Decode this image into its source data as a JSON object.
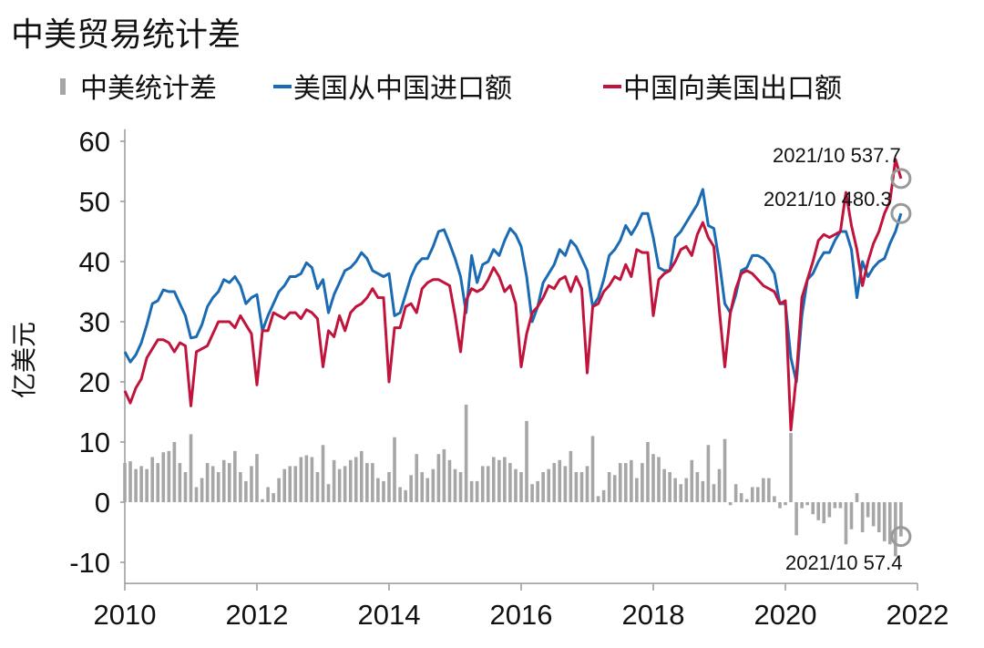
{
  "chart_data": {
    "type": "line",
    "title": "中美贸易统计差",
    "ylabel": "亿美元",
    "xlim": [
      2010,
      2022
    ],
    "xticks": [
      2010,
      2012,
      2014,
      2016,
      2018,
      2020,
      2022
    ],
    "ylim": [
      -13.5,
      62
    ],
    "yticks": [
      -10,
      0,
      10,
      20,
      30,
      40,
      50,
      60
    ],
    "legend": "top",
    "annotations": [
      "2021/10 537.7",
      "2021/10 480.3",
      "2021/10 57.4"
    ],
    "x": [
      2010,
      2010.083,
      2010.167,
      2010.25,
      2010.333,
      2010.417,
      2010.5,
      2010.583,
      2010.667,
      2010.75,
      2010.833,
      2010.917,
      2011,
      2011.083,
      2011.167,
      2011.25,
      2011.333,
      2011.417,
      2011.5,
      2011.583,
      2011.667,
      2011.75,
      2011.833,
      2011.917,
      2012,
      2012.083,
      2012.167,
      2012.25,
      2012.333,
      2012.417,
      2012.5,
      2012.583,
      2012.667,
      2012.75,
      2012.833,
      2012.917,
      2013,
      2013.083,
      2013.167,
      2013.25,
      2013.333,
      2013.417,
      2013.5,
      2013.583,
      2013.667,
      2013.75,
      2013.833,
      2013.917,
      2014,
      2014.083,
      2014.167,
      2014.25,
      2014.333,
      2014.417,
      2014.5,
      2014.583,
      2014.667,
      2014.75,
      2014.833,
      2014.917,
      2015,
      2015.083,
      2015.167,
      2015.25,
      2015.333,
      2015.417,
      2015.5,
      2015.583,
      2015.667,
      2015.75,
      2015.833,
      2015.917,
      2016,
      2016.083,
      2016.167,
      2016.25,
      2016.333,
      2016.417,
      2016.5,
      2016.583,
      2016.667,
      2016.75,
      2016.833,
      2016.917,
      2017,
      2017.083,
      2017.167,
      2017.25,
      2017.333,
      2017.417,
      2017.5,
      2017.583,
      2017.667,
      2017.75,
      2017.833,
      2017.917,
      2018,
      2018.083,
      2018.167,
      2018.25,
      2018.333,
      2018.417,
      2018.5,
      2018.583,
      2018.667,
      2018.75,
      2018.833,
      2018.917,
      2019,
      2019.083,
      2019.167,
      2019.25,
      2019.333,
      2019.417,
      2019.5,
      2019.583,
      2019.667,
      2019.75,
      2019.833,
      2019.917,
      2020,
      2020.083,
      2020.167,
      2020.25,
      2020.333,
      2020.417,
      2020.5,
      2020.583,
      2020.667,
      2020.75,
      2020.833,
      2020.917,
      2021,
      2021.083,
      2021.167,
      2021.25,
      2021.333,
      2021.417,
      2021.5,
      2021.583,
      2021.667,
      2021.75
    ],
    "series": [
      {
        "name": "中美统计差",
        "type": "bar",
        "color": "#a6a6a6",
        "values": [
          6.5,
          6.8,
          5.5,
          6.0,
          5.5,
          7.5,
          6.5,
          8.3,
          8.5,
          10.0,
          6.5,
          5.0,
          11.3,
          2.5,
          4.0,
          6.5,
          6.0,
          5.0,
          7.0,
          6.5,
          8.5,
          5.0,
          3.5,
          6.0,
          8.0,
          0.5,
          2.5,
          1.5,
          4.0,
          5.5,
          6.0,
          6.0,
          7.5,
          7.8,
          7.5,
          5.0,
          9.5,
          3.0,
          7.0,
          5.5,
          6.0,
          7.0,
          7.5,
          8.5,
          6.5,
          6.5,
          4.0,
          3.5,
          5.0,
          10.8,
          2.5,
          2.0,
          4.5,
          8.0,
          5.0,
          4.0,
          5.5,
          8.0,
          8.8,
          7.0,
          5.5,
          5.0,
          16.2,
          3.5,
          3.5,
          6.0,
          6.0,
          7.5,
          7.0,
          7.5,
          6.5,
          5.5,
          5.0,
          13.5,
          3.0,
          3.5,
          5.0,
          5.5,
          6.5,
          7.0,
          6.0,
          8.5,
          5.0,
          5.0,
          6.0,
          11.0,
          1.0,
          2.0,
          5.0,
          4.5,
          6.5,
          6.5,
          7.0,
          4.0,
          6.5,
          10.0,
          8.0,
          7.5,
          5.5,
          5.0,
          4.0,
          3.0,
          4.0,
          7.0,
          5.0,
          3.5,
          9.5,
          3.0,
          5.5,
          10.5,
          -0.5,
          3.0,
          1.5,
          0.5,
          2.5,
          2.5,
          4.0,
          4.0,
          1.0,
          -1.0,
          -0.5,
          11.5,
          -5.5,
          -1.0,
          -0.5,
          -2.0,
          -3.0,
          -3.5,
          -2.5,
          -1.0,
          -1.0,
          -7.0,
          -4.5,
          1.5,
          -5.0,
          -2.5,
          -4.0,
          -5.0,
          -6.5,
          -7.0,
          -9.0,
          -5.7
        ]
      },
      {
        "name": "美国从中国进口额",
        "type": "line",
        "color": "#1a6bb3",
        "values": [
          25.0,
          23.3,
          24.5,
          26.5,
          29.5,
          33.0,
          33.5,
          35.3,
          35.0,
          35.0,
          33.0,
          31.0,
          27.3,
          27.5,
          29.5,
          32.5,
          34.0,
          35.0,
          37.0,
          36.5,
          37.5,
          36.0,
          33.0,
          34.0,
          34.5,
          28.5,
          31.0,
          33.0,
          35.0,
          36.0,
          37.5,
          37.5,
          38.0,
          39.8,
          39.0,
          35.5,
          37.0,
          31.5,
          34.5,
          36.5,
          38.5,
          39.0,
          40.0,
          41.5,
          40.5,
          38.5,
          38.0,
          37.5,
          38.0,
          31.0,
          31.5,
          34.5,
          37.5,
          39.5,
          40.5,
          40.5,
          42.5,
          45.0,
          45.3,
          43.0,
          40.5,
          37.5,
          31.5,
          41.0,
          36.5,
          39.5,
          40.0,
          42.0,
          41.0,
          43.5,
          45.5,
          44.5,
          42.5,
          37.5,
          30.0,
          32.5,
          36.5,
          38.0,
          39.5,
          42.0,
          41.0,
          43.5,
          42.5,
          40.5,
          38.5,
          32.5,
          34.0,
          37.0,
          41.0,
          42.0,
          43.5,
          46.0,
          44.5,
          46.0,
          48.0,
          48.0,
          44.0,
          39.0,
          38.5,
          38.5,
          44.0,
          45.0,
          46.5,
          48.0,
          49.5,
          52.0,
          46.0,
          45.5,
          40.0,
          33.0,
          31.5,
          34.5,
          38.5,
          39.0,
          41.0,
          41.0,
          40.5,
          39.5,
          38.0,
          33.0,
          33.0,
          24.0,
          20.0,
          31.0,
          37.0,
          38.0,
          40.0,
          41.5,
          41.5,
          43.5,
          45.0,
          45.0,
          42.0,
          34.0,
          40.0,
          37.5,
          39.0,
          40.0,
          40.5,
          43.0,
          45.0,
          48.0
        ]
      },
      {
        "name": "中国向美国出口额",
        "type": "line",
        "color": "#c0143c",
        "values": [
          18.5,
          16.5,
          19.0,
          20.5,
          24.0,
          25.5,
          27.0,
          27.0,
          26.5,
          25.0,
          26.5,
          26.0,
          16.0,
          25.0,
          25.5,
          26.0,
          28.0,
          30.0,
          30.0,
          30.0,
          29.0,
          31.0,
          29.5,
          28.0,
          19.5,
          28.5,
          28.5,
          31.5,
          31.0,
          30.5,
          31.5,
          31.5,
          30.5,
          32.0,
          31.5,
          30.5,
          22.5,
          28.5,
          27.5,
          31.0,
          28.5,
          31.5,
          32.5,
          33.0,
          34.0,
          35.5,
          34.0,
          34.0,
          20.0,
          29.0,
          29.0,
          32.5,
          33.0,
          31.5,
          35.5,
          36.5,
          37.0,
          37.0,
          36.5,
          36.0,
          31.0,
          25.0,
          33.5,
          35.5,
          35.0,
          35.5,
          37.0,
          39.0,
          37.5,
          35.0,
          36.0,
          33.0,
          22.5,
          28.0,
          31.5,
          32.5,
          34.0,
          36.0,
          35.5,
          37.0,
          37.5,
          35.0,
          37.5,
          35.5,
          21.5,
          32.5,
          33.0,
          35.0,
          36.0,
          37.5,
          37.0,
          39.5,
          37.5,
          42.0,
          41.5,
          41.5,
          31.0,
          37.0,
          38.0,
          38.5,
          40.0,
          42.0,
          42.5,
          41.0,
          44.5,
          46.5,
          44.0,
          42.5,
          32.0,
          22.5,
          31.5,
          35.5,
          38.0,
          38.5,
          38.0,
          37.0,
          36.0,
          35.5,
          35.0,
          33.0,
          33.5,
          12.0,
          21.0,
          34.0,
          37.0,
          40.0,
          43.5,
          44.5,
          44.0,
          44.5,
          45.0,
          51.5,
          46.0,
          42.0,
          36.0,
          40.0,
          43.0,
          45.0,
          48.0,
          50.0,
          57.0,
          53.8
        ]
      }
    ]
  }
}
